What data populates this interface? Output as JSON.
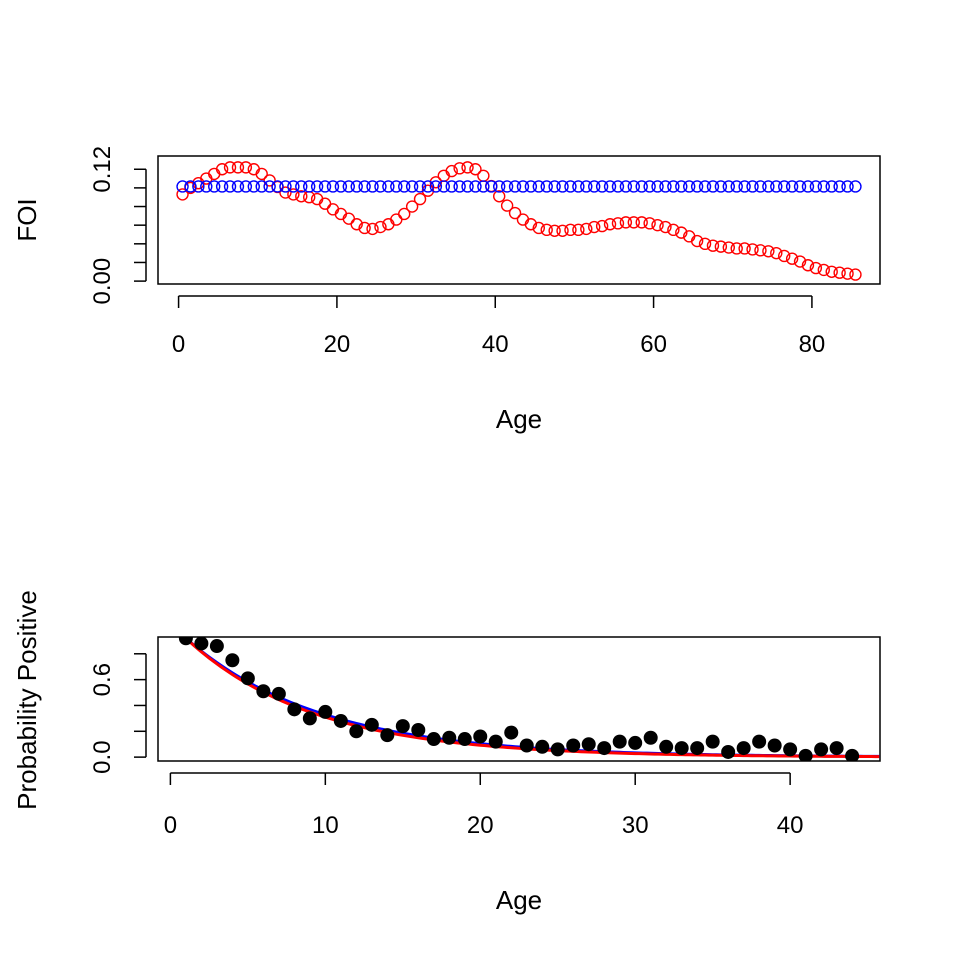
{
  "chart_data": [
    {
      "type": "scatter",
      "xlabel": "Age",
      "ylabel": "FOI",
      "xlim": [
        -2.6,
        88.6
      ],
      "ylim": [
        -0.0031,
        0.1342
      ],
      "x_ticks": [
        "0",
        "20",
        "40",
        "60",
        "80"
      ],
      "y_tick_labels": [
        "0.00",
        "0.12"
      ],
      "y_minor_ticks": [
        0.0,
        0.02,
        0.04,
        0.06,
        0.08,
        0.1,
        0.12
      ],
      "x": [
        0.5,
        1.5,
        2.5,
        3.5,
        4.5,
        5.5,
        6.5,
        7.5,
        8.5,
        9.5,
        10.5,
        11.5,
        12.5,
        13.5,
        14.5,
        15.5,
        16.5,
        17.5,
        18.5,
        19.5,
        20.5,
        21.5,
        22.5,
        23.5,
        24.5,
        25.5,
        26.5,
        27.5,
        28.5,
        29.5,
        30.5,
        31.5,
        32.5,
        33.5,
        34.5,
        35.5,
        36.5,
        37.5,
        38.5,
        39.5,
        40.5,
        41.5,
        42.5,
        43.5,
        44.5,
        45.5,
        46.5,
        47.5,
        48.5,
        49.5,
        50.5,
        51.5,
        52.5,
        53.5,
        54.5,
        55.5,
        56.5,
        57.5,
        58.5,
        59.5,
        60.5,
        61.5,
        62.5,
        63.5,
        64.5,
        65.5,
        66.5,
        67.5,
        68.5,
        69.5,
        70.5,
        71.5,
        72.5,
        73.5,
        74.5,
        75.5,
        76.5,
        77.5,
        78.5,
        79.5,
        80.5,
        81.5,
        82.5,
        83.5,
        84.5,
        85.5
      ],
      "series": [
        {
          "color": "#ff0000",
          "values": [
            0.093,
            0.1,
            0.105,
            0.11,
            0.115,
            0.12,
            0.122,
            0.122,
            0.122,
            0.12,
            0.115,
            0.108,
            0.101,
            0.095,
            0.093,
            0.091,
            0.09,
            0.088,
            0.083,
            0.077,
            0.072,
            0.067,
            0.061,
            0.057,
            0.056,
            0.058,
            0.061,
            0.066,
            0.072,
            0.08,
            0.088,
            0.097,
            0.106,
            0.113,
            0.118,
            0.121,
            0.122,
            0.12,
            0.113,
            0.102,
            0.091,
            0.081,
            0.073,
            0.066,
            0.061,
            0.057,
            0.055,
            0.054,
            0.054,
            0.055,
            0.055,
            0.056,
            0.058,
            0.059,
            0.061,
            0.062,
            0.063,
            0.063,
            0.063,
            0.062,
            0.06,
            0.058,
            0.055,
            0.052,
            0.048,
            0.043,
            0.04,
            0.038,
            0.037,
            0.036,
            0.035,
            0.035,
            0.034,
            0.033,
            0.032,
            0.03,
            0.027,
            0.024,
            0.021,
            0.017,
            0.014,
            0.012,
            0.01,
            0.009,
            0.008,
            0.007
          ]
        },
        {
          "color": "#0000ff",
          "values": [
            0.1015,
            0.1015,
            0.1015,
            0.1015,
            0.1015,
            0.1015,
            0.1015,
            0.1015,
            0.1015,
            0.1015,
            0.1015,
            0.1015,
            0.1015,
            0.1015,
            0.1015,
            0.1015,
            0.1015,
            0.1015,
            0.1015,
            0.1015,
            0.1015,
            0.1015,
            0.1015,
            0.1015,
            0.1015,
            0.1015,
            0.1015,
            0.1015,
            0.1015,
            0.1015,
            0.1015,
            0.1015,
            0.1015,
            0.1015,
            0.1015,
            0.1015,
            0.1015,
            0.1015,
            0.1015,
            0.1015,
            0.1015,
            0.1015,
            0.1015,
            0.1015,
            0.1015,
            0.1015,
            0.1015,
            0.1015,
            0.1015,
            0.1015,
            0.1015,
            0.1015,
            0.1015,
            0.1015,
            0.1015,
            0.1015,
            0.1015,
            0.1015,
            0.1015,
            0.1015,
            0.1015,
            0.1015,
            0.1015,
            0.1015,
            0.1015,
            0.1015,
            0.1015,
            0.1015,
            0.1015,
            0.1015,
            0.1015,
            0.1015,
            0.1015,
            0.1015,
            0.1015,
            0.1015,
            0.1015,
            0.1015,
            0.1015,
            0.1015,
            0.1015,
            0.1015,
            0.1015,
            0.1015,
            0.1015,
            0.1015
          ]
        }
      ]
    },
    {
      "type": "scatter",
      "xlabel": "Age",
      "ylabel": "Probability Positive",
      "xlim": [
        -0.8,
        45.8
      ],
      "ylim": [
        -0.03,
        0.93
      ],
      "x_ticks": [
        "0",
        "10",
        "20",
        "30",
        "40"
      ],
      "y_tick_labels": [
        "0.0",
        "0.6"
      ],
      "y_minor_ticks": [
        0.0,
        0.2,
        0.4,
        0.6,
        0.8
      ],
      "points": {
        "color": "#000000",
        "x": [
          1,
          2,
          3,
          4,
          5,
          6,
          7,
          8,
          9,
          10,
          11,
          12,
          13,
          14,
          15,
          16,
          17,
          18,
          19,
          20,
          21,
          22,
          23,
          24,
          25,
          26,
          27,
          28,
          29,
          30,
          31,
          32,
          33,
          34,
          35,
          36,
          37,
          38,
          39,
          40,
          41,
          42,
          43,
          44
        ],
        "y": [
          0.92,
          0.88,
          0.86,
          0.75,
          0.61,
          0.51,
          0.49,
          0.37,
          0.3,
          0.35,
          0.28,
          0.2,
          0.25,
          0.17,
          0.24,
          0.21,
          0.14,
          0.15,
          0.14,
          0.16,
          0.12,
          0.19,
          0.09,
          0.08,
          0.06,
          0.09,
          0.1,
          0.07,
          0.12,
          0.11,
          0.15,
          0.08,
          0.07,
          0.07,
          0.12,
          0.04,
          0.07,
          0.12,
          0.09,
          0.06,
          0.01,
          0.06,
          0.07,
          0.01
        ]
      },
      "curves": [
        {
          "color": "#0000ff",
          "rate": 0.1145,
          "x_start": 1.0,
          "y_at_start": 0.92
        },
        {
          "color": "#ff0000",
          "rate": 0.121,
          "x_start": 1.0,
          "y_at_start": 0.92
        }
      ]
    }
  ]
}
